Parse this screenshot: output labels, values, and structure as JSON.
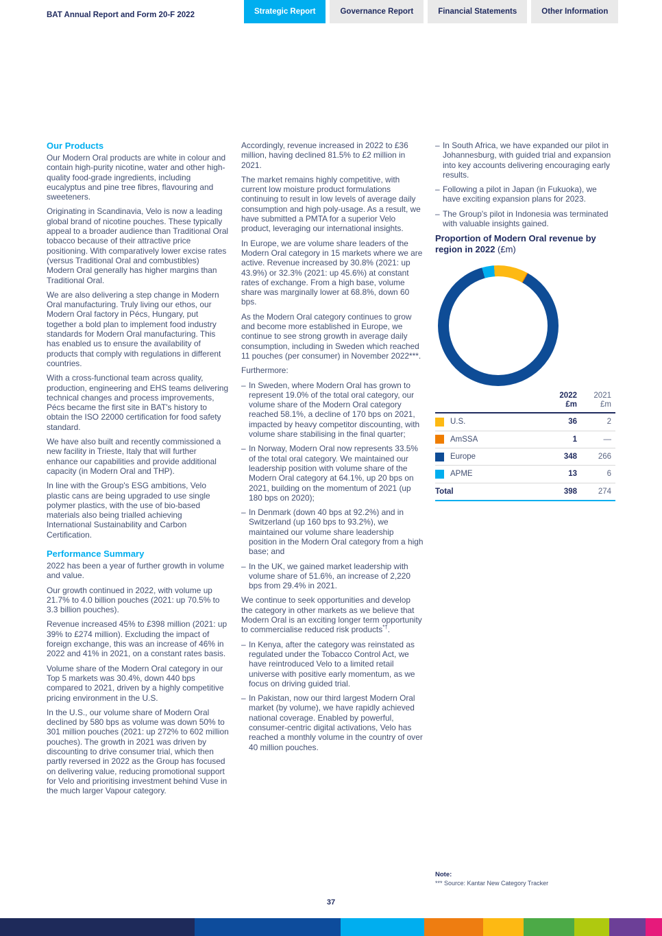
{
  "meta": {
    "bullet_char": "–"
  },
  "header": {
    "title": "BAT Annual Report and Form 20-F 2022",
    "tabs": [
      {
        "label": "Strategic Report",
        "active": true
      },
      {
        "label": "Governance Report",
        "active": false
      },
      {
        "label": "Financial Statements",
        "active": false
      },
      {
        "label": "Other Information",
        "active": false
      }
    ]
  },
  "columns": {
    "col1": {
      "blocks": [
        {
          "type": "heading",
          "text": "Our Products"
        },
        {
          "type": "p",
          "text": "Our Modern Oral products are white in colour and contain high-purity nicotine, water and other high-quality food-grade ingredients, including eucalyptus and pine tree fibres, flavouring and sweeteners."
        },
        {
          "type": "p",
          "text": "Originating in Scandinavia, Velo is now a leading global brand of nicotine pouches. These typically appeal to a broader audience than Traditional Oral tobacco because of their attractive price positioning. With comparatively lower excise rates (versus Traditional Oral and combustibles) Modern Oral generally has higher margins than Traditional Oral."
        },
        {
          "type": "p",
          "text": "We are also delivering a step change in Modern Oral manufacturing. Truly living our ethos, our Modern Oral factory in Pécs, Hungary, put together a bold plan to implement food industry standards for Modern Oral manufacturing. This has enabled us to ensure the availability of products that comply with regulations in different countries."
        },
        {
          "type": "p",
          "text": "With a cross-functional team across quality, production, engineering and EHS teams delivering technical changes and process improvements, Pécs became the first site in BAT's history to obtain the ISO 22000 certification for food safety standard."
        },
        {
          "type": "p",
          "text": "We have also built and recently commissioned a new facility in Trieste, Italy that will further enhance our capabilities and provide additional capacity (in Modern Oral and THP)."
        },
        {
          "type": "p",
          "text": "In line with the Group's ESG ambitions, Velo plastic cans are being upgraded to use single polymer plastics, with the use of bio-based materials also being trialled achieving International Sustainability and Carbon Certification."
        },
        {
          "type": "heading",
          "text": "Performance Summary"
        },
        {
          "type": "p",
          "text": "2022 has been a year of further growth in volume and value."
        },
        {
          "type": "p",
          "text": "Our growth continued in 2022, with volume up 21.7% to 4.0 billion pouches (2021: up 70.5% to 3.3 billion pouches)."
        },
        {
          "type": "p",
          "text": "Revenue increased 45% to £398 million (2021: up 39% to £274 million). Excluding the impact of foreign exchange, this was an increase of 46% in 2022 and 41% in 2021, on a constant rates basis."
        },
        {
          "type": "p",
          "text": "Volume share of the Modern Oral category in our Top 5 markets was 30.4%, down 440 bps compared to 2021, driven by a highly competitive pricing environment in the U.S."
        },
        {
          "type": "p",
          "text": "In the U.S., our volume share of Modern Oral declined by 580 bps as volume was down 50% to 301 million pouches (2021: up 272% to 602 million pouches). The growth in 2021 was driven by discounting to drive consumer trial, which then partly reversed in 2022 as the Group has focused on delivering value, reducing promotional support for Velo and prioritising investment behind Vuse in the much larger Vapour category."
        }
      ]
    },
    "col2": {
      "blocks": [
        {
          "type": "p",
          "text": "Accordingly, revenue increased in 2022 to £36 million, having declined 81.5% to £2 million in 2021."
        },
        {
          "type": "p",
          "text": "The market remains highly competitive, with current low moisture product formulations continuing to result in low levels of average daily consumption and high poly-usage. As a result, we have submitted a PMTA for a superior Velo product, leveraging our international insights."
        },
        {
          "type": "p",
          "text": "In Europe, we are volume share leaders of the Modern Oral category in 15 markets where we are active. Revenue increased by 30.8% (2021: up 43.9%) or 32.3% (2021: up 45.6%) at constant rates of exchange. From a high base, volume share was marginally lower at 68.8%, down 60 bps."
        },
        {
          "type": "p",
          "text": "As the Modern Oral category continues to grow and become more established in Europe, we continue to see strong growth in average daily consumption, including in Sweden which reached 11 pouches (per consumer) in November 2022***."
        },
        {
          "type": "p",
          "text": "Furthermore:"
        },
        {
          "type": "bullet",
          "text": "In Sweden, where Modern Oral has grown to represent 19.0% of the total oral category, our volume share of the Modern Oral category reached 58.1%, a decline of 170 bps on 2021, impacted by heavy competitor discounting, with volume share stabilising in the final quarter;"
        },
        {
          "type": "bullet",
          "text": "In Norway, Modern Oral now represents 33.5% of the total oral category. We maintained our leadership position with volume share of the Modern Oral category at 64.1%, up 20 bps on 2021, building on the momentum of 2021 (up 180 bps on 2020);"
        },
        {
          "type": "bullet",
          "text": "In Denmark (down 40 bps at 92.2%) and in Switzerland (up 160 bps to 93.2%), we maintained our volume share leadership position in the Modern Oral category from a high base; and"
        },
        {
          "type": "bullet",
          "text": "In the UK, we gained market leadership with volume share of 51.6%, an increase of 2,220 bps from 29.4% in 2021."
        },
        {
          "type": "p",
          "parts": [
            {
              "text": "We continue to seek opportunities and develop the category in other markets as we believe that Modern Oral is an exciting longer term opportunity to commercialise reduced risk products"
            },
            {
              "sup": "*†"
            },
            {
              "text": "."
            }
          ]
        },
        {
          "type": "bullet",
          "text": "In Kenya, after the category was reinstated as regulated under the Tobacco Control Act, we have reintroduced Velo to a limited retail universe with positive early momentum, as we focus on driving guided trial."
        },
        {
          "type": "bullet",
          "text": "In Pakistan, now our third largest Modern Oral market (by volume), we have rapidly achieved national coverage. Enabled by powerful, consumer-centric digital activations, Velo has reached a monthly volume in the country of over 40 million pouches."
        }
      ]
    },
    "col3": {
      "blocks": [
        {
          "type": "bullet",
          "text": "In South Africa, we have expanded our pilot in Johannesburg, with guided trial and expansion into key accounts delivering encouraging early results."
        },
        {
          "type": "bullet",
          "text": "Following a pilot in Japan (in Fukuoka), we have exciting expansion plans for 2023."
        },
        {
          "type": "bullet",
          "text": "The Group's pilot in Indonesia was terminated with valuable insights gained."
        }
      ]
    }
  },
  "chart": {
    "title": "Proportion of Modern Oral revenue by region in 2022",
    "title_suffix": "(£m)"
  },
  "chart_data": {
    "type": "pie",
    "subtype": "donut",
    "title": "Proportion of Modern Oral revenue by region in 2022 (£m)",
    "unit": "£m",
    "categories": [
      "U.S.",
      "AmSSA",
      "Europe",
      "APME"
    ],
    "colors": [
      "#FDB913",
      "#EF7D00",
      "#0E4C96",
      "#00AEEF"
    ],
    "series": [
      {
        "name": "2022 £m",
        "values": [
          36,
          1,
          348,
          13
        ],
        "total": 398
      },
      {
        "name": "2021 £m",
        "values": [
          2,
          null,
          266,
          6
        ],
        "total": 274
      }
    ],
    "donut_series_shown": "2022 £m",
    "start_angle_deg": -4,
    "legend_position": "table-below"
  },
  "table": {
    "headers": [
      {
        "year": "2022",
        "unit": "£m"
      },
      {
        "year": "2021",
        "unit": "£m"
      }
    ],
    "rows": [
      {
        "label": "U.S.",
        "color": "#FDB913",
        "v2022": "36",
        "v2021": "2"
      },
      {
        "label": "AmSSA",
        "color": "#EF7D00",
        "v2022": "1",
        "v2021": "—"
      },
      {
        "label": "Europe",
        "color": "#0E4C96",
        "v2022": "348",
        "v2021": "266"
      },
      {
        "label": "APME",
        "color": "#00AEEF",
        "v2022": "13",
        "v2021": "6"
      }
    ],
    "total": {
      "label": "Total",
      "v2022": "398",
      "v2021": "274"
    }
  },
  "note": {
    "title": "Note:",
    "text": "*** Source: Kantar New Category Tracker"
  },
  "footer": {
    "page_number": "37",
    "bar_segments": [
      {
        "name": "navy",
        "color": "#1E2A5A",
        "width_pct": 29.4
      },
      {
        "name": "blue",
        "color": "#0D4C9C",
        "width_pct": 22.0
      },
      {
        "name": "cyan",
        "color": "#00AEEF",
        "width_pct": 12.7
      },
      {
        "name": "orange",
        "color": "#EE7D11",
        "width_pct": 8.9
      },
      {
        "name": "yellow",
        "color": "#FDB913",
        "width_pct": 6.1
      },
      {
        "name": "green",
        "color": "#4CAA47",
        "width_pct": 7.7
      },
      {
        "name": "lime",
        "color": "#AFC90F",
        "width_pct": 5.2
      },
      {
        "name": "purple",
        "color": "#6C3F97",
        "width_pct": 5.5
      },
      {
        "name": "pink",
        "color": "#E61A7B",
        "width_pct": 2.5
      }
    ]
  }
}
